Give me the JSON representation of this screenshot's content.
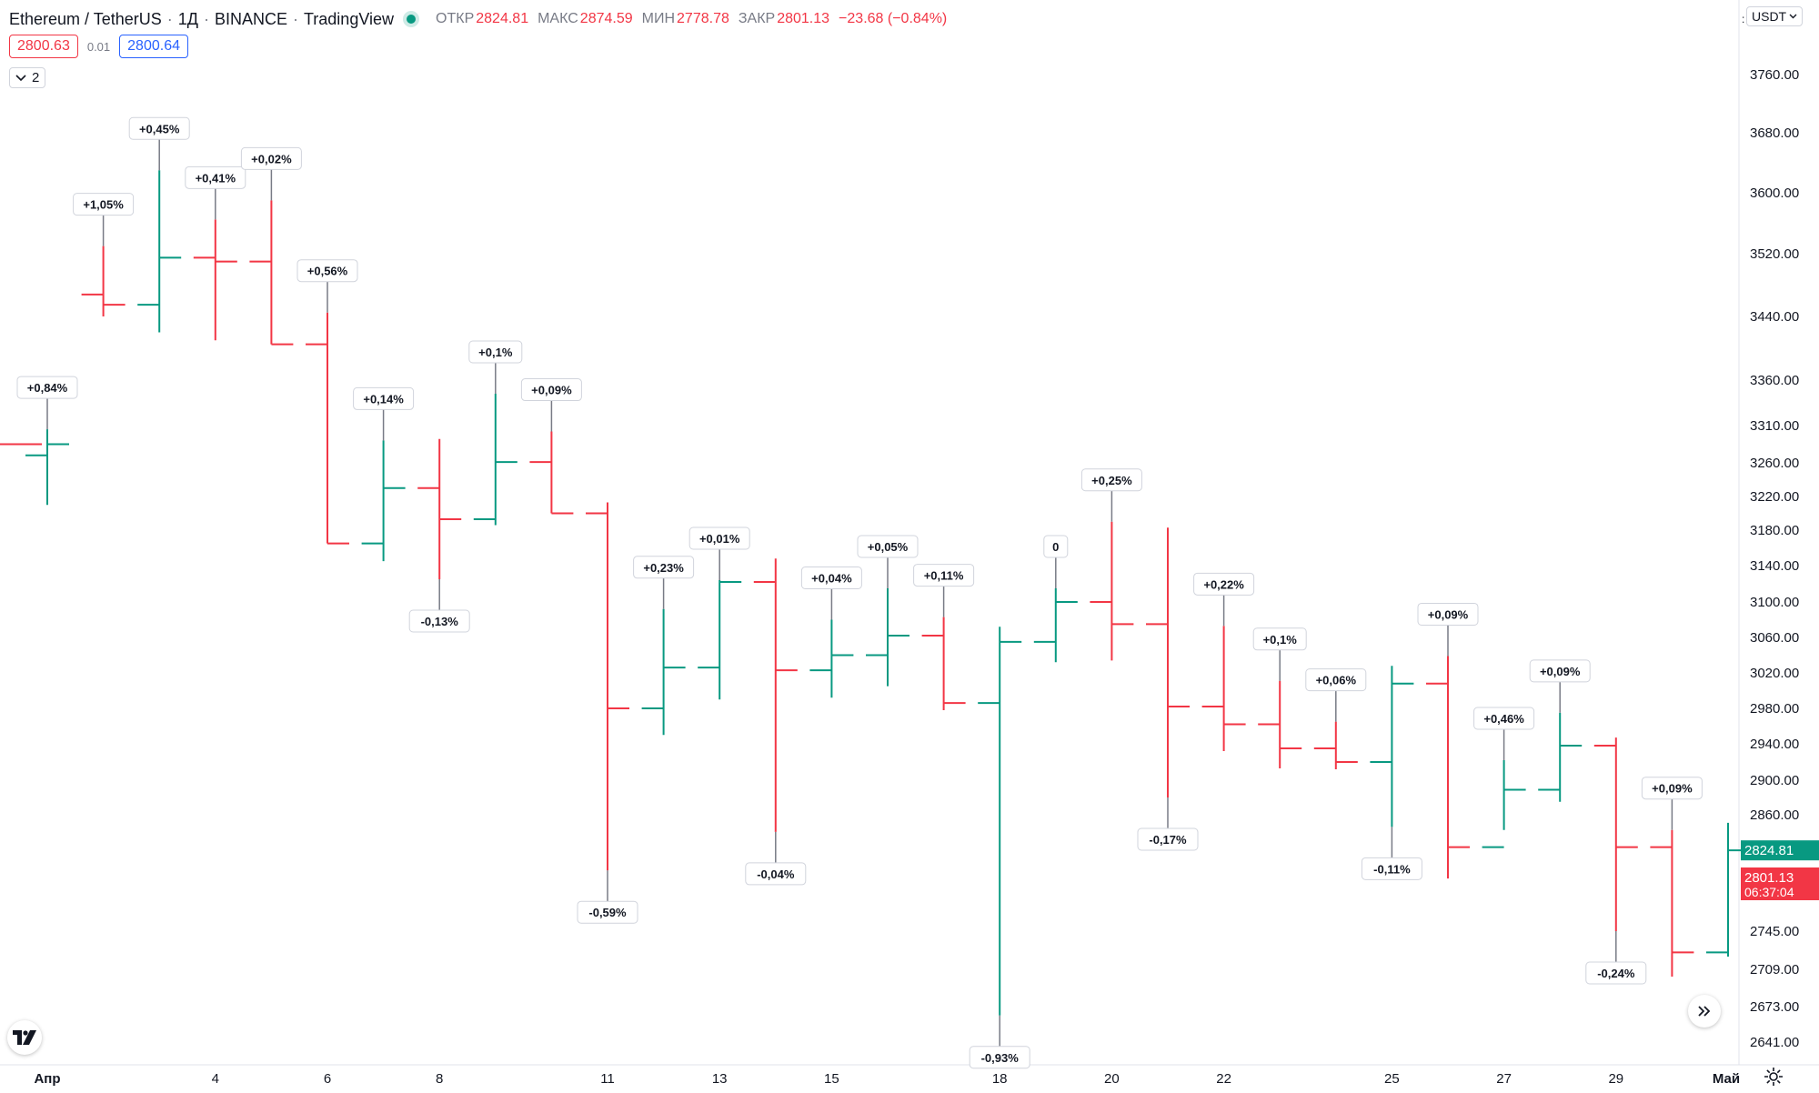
{
  "header": {
    "symbol": "Ethereum / TetherUS",
    "interval": "1Д",
    "exchange": "BINANCE",
    "source": "TradingView",
    "open_label": "ОТКР",
    "open_value": "2824.81",
    "high_label": "МАКС",
    "high_value": "2874.59",
    "low_label": "МИН",
    "low_value": "2778.78",
    "close_label": "ЗАКР",
    "close_value": "2801.13",
    "change_value": "−23.68 (−0.84%)"
  },
  "trade": {
    "sell_price": "2800.63",
    "spread": "0.01",
    "buy_price": "2800.64"
  },
  "indicators_toggle": {
    "icon": "chevron-down-icon",
    "count": "2"
  },
  "currency": {
    "label": "USDT"
  },
  "colors": {
    "up": "#089981",
    "down": "#f23645",
    "wick": "#787b86",
    "grid": "#e0e3eb"
  },
  "chart_data": {
    "type": "ohlc",
    "y_axis_ticks": [
      3760,
      3680,
      3600,
      3520,
      3440,
      3360,
      3310,
      3260,
      3220,
      3180,
      3140,
      3100,
      3060,
      3020,
      2980,
      2940,
      2900,
      2860,
      2745,
      2709,
      2673,
      2641
    ],
    "y_axis_labels": [
      "3760.00",
      "3680.00",
      "3600.00",
      "3520.00",
      "3440.00",
      "3360.00",
      "3310.00",
      "3260.00",
      "3220.00",
      "3180.00",
      "3140.00",
      "3100.00",
      "3060.00",
      "3020.00",
      "2980.00",
      "2940.00",
      "2900.00",
      "2860.00",
      "2745.00",
      "2709.00",
      "2673.00",
      "2641.00"
    ],
    "x_axis_labels": [
      "Апр",
      "4",
      "6",
      "8",
      "11",
      "13",
      "15",
      "18",
      "20",
      "22",
      "25",
      "27",
      "29",
      "Май"
    ],
    "x_axis_label_bars": [
      0,
      3,
      5,
      7,
      10,
      12,
      14,
      17,
      19,
      21,
      24,
      26,
      28,
      30
    ],
    "bars": [
      {
        "o": 3270,
        "h": 3305,
        "l": 3210,
        "c": 3285,
        "ann": "+0,84%",
        "pos": "top"
      },
      {
        "o": 3468,
        "h": 3530,
        "l": 3440,
        "c": 3455,
        "ann": "+1,05%",
        "pos": "top"
      },
      {
        "o": 3455,
        "h": 3630,
        "l": 3420,
        "c": 3515,
        "ann": "+0,45%",
        "pos": "top"
      },
      {
        "o": 3515,
        "h": 3565,
        "l": 3410,
        "c": 3510,
        "ann": "+0,41%",
        "pos": "top"
      },
      {
        "o": 3510,
        "h": 3590,
        "l": 3405,
        "c": 3405,
        "ann": "+0,02%",
        "pos": "top"
      },
      {
        "o": 3405,
        "h": 3445,
        "l": 3165,
        "c": 3165,
        "ann": "+0,56%",
        "pos": "top"
      },
      {
        "o": 3165,
        "h": 3290,
        "l": 3145,
        "c": 3230,
        "ann": "+0,14%",
        "pos": "top"
      },
      {
        "o": 3230,
        "h": 3292,
        "l": 3125,
        "c": 3193,
        "ann": "-0,13%",
        "pos": "bottom"
      },
      {
        "o": 3193,
        "h": 3345,
        "l": 3186,
        "c": 3261,
        "ann": "+0,1%",
        "pos": "top"
      },
      {
        "o": 3261,
        "h": 3302,
        "l": 3200,
        "c": 3200,
        "ann": "+0,09%",
        "pos": "top"
      },
      {
        "o": 3200,
        "h": 3213,
        "l": 2805,
        "c": 2980,
        "ann": "-0,59%",
        "pos": "bottom"
      },
      {
        "o": 2980,
        "h": 3092,
        "l": 2950,
        "c": 3026,
        "ann": "+0,23%",
        "pos": "top"
      },
      {
        "o": 3026,
        "h": 3124,
        "l": 2990,
        "c": 3122,
        "ann": "+0,01%",
        "pos": "top"
      },
      {
        "o": 3122,
        "h": 3148,
        "l": 2843,
        "c": 3023,
        "ann": "-0,04%",
        "pos": "bottom"
      },
      {
        "o": 3023,
        "h": 3080,
        "l": 2992,
        "c": 3040,
        "ann": "+0,04%",
        "pos": "top"
      },
      {
        "o": 3040,
        "h": 3115,
        "l": 3005,
        "c": 3062,
        "ann": "+0,05%",
        "pos": "top"
      },
      {
        "o": 3062,
        "h": 3083,
        "l": 2978,
        "c": 2986,
        "ann": "+0,11%",
        "pos": "top"
      },
      {
        "o": 2986,
        "h": 3072,
        "l": 2665,
        "c": 3055,
        "ann": "-0,93%",
        "pos": "bottom"
      },
      {
        "o": 3055,
        "h": 3115,
        "l": 3032,
        "c": 3100,
        "ann": "0",
        "pos": "top"
      },
      {
        "o": 3100,
        "h": 3190,
        "l": 3034,
        "c": 3075,
        "ann": "+0,25%",
        "pos": "top"
      },
      {
        "o": 3075,
        "h": 3183,
        "l": 2880,
        "c": 2982,
        "ann": "-0,17%",
        "pos": "bottom"
      },
      {
        "o": 2982,
        "h": 3073,
        "l": 2932,
        "c": 2962,
        "ann": "+0,22%",
        "pos": "top"
      },
      {
        "o": 2962,
        "h": 3011,
        "l": 2913,
        "c": 2935,
        "ann": "+0,1%",
        "pos": "top"
      },
      {
        "o": 2935,
        "h": 2965,
        "l": 2912,
        "c": 2920,
        "ann": "+0,06%",
        "pos": "top"
      },
      {
        "o": 2920,
        "h": 3028,
        "l": 2848,
        "c": 3008,
        "ann": "-0,11%",
        "pos": "bottom"
      },
      {
        "o": 3008,
        "h": 3039,
        "l": 2797,
        "c": 2828,
        "ann": "+0,09%",
        "pos": "top"
      },
      {
        "o": 2828,
        "h": 2922,
        "l": 2845,
        "c": 2889,
        "ann": "+0,46%",
        "pos": "top"
      },
      {
        "o": 2889,
        "h": 2975,
        "l": 2875,
        "c": 2938,
        "ann": "+0,09%",
        "pos": "top"
      },
      {
        "o": 2938,
        "h": 2947,
        "l": 2745,
        "c": 2828,
        "ann": "-0,24%",
        "pos": "bottom"
      },
      {
        "o": 2828,
        "h": 2845,
        "l": 2702,
        "c": 2725,
        "ann": "+0,09%",
        "pos": "top"
      },
      {
        "o": 2725,
        "h": 2852,
        "l": 2721,
        "c": 2824.81,
        "ann": "",
        "pos": "top"
      }
    ],
    "price_labels": [
      {
        "text": "2824.81",
        "color": "#089981",
        "value": 2824.81
      },
      {
        "text": "2801.13",
        "sub": "06:37:04",
        "color": "#f23645",
        "value": 2801.13
      }
    ]
  }
}
